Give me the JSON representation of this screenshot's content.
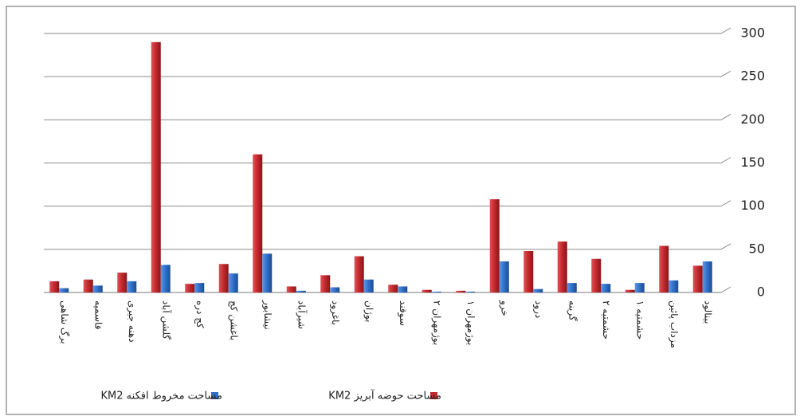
{
  "chart_data": {
    "type": "bar",
    "categories": [
      "برگ شاهی",
      "قاسمیه",
      "دهنه جیری",
      "گلشن آباد",
      "کج دره",
      "باغشن کج",
      "نیشابور",
      "شیرآباد",
      "باغرود",
      "بوژان",
      "سوقند",
      "بوژمهران ۲",
      "بوژمهران ۱",
      "خرو",
      "درود",
      "گرینه",
      "حشمتیه ۲",
      "حشمتیه ۱",
      "مزداب پائین",
      "بینالود"
    ],
    "series": [
      {
        "name": "مساحت حوضه آبریز KM2",
        "color": "#c0282d",
        "values": [
          13,
          15,
          23,
          290,
          10,
          33,
          160,
          7,
          20,
          42,
          9,
          3,
          2,
          108,
          48,
          59,
          39,
          3,
          54,
          31
        ]
      },
      {
        "name": "مساحت مخروط افکنه KM2",
        "color": "#2f6fc7",
        "values": [
          5,
          8,
          13,
          32,
          11,
          22,
          45,
          2,
          6,
          15,
          7,
          1,
          1,
          36,
          4,
          11,
          10,
          11,
          14,
          36
        ]
      }
    ],
    "ylim": [
      0,
      300
    ],
    "yticks": [
      0,
      50,
      100,
      150,
      200,
      250,
      300
    ],
    "grid": true,
    "legend": "bottom"
  }
}
